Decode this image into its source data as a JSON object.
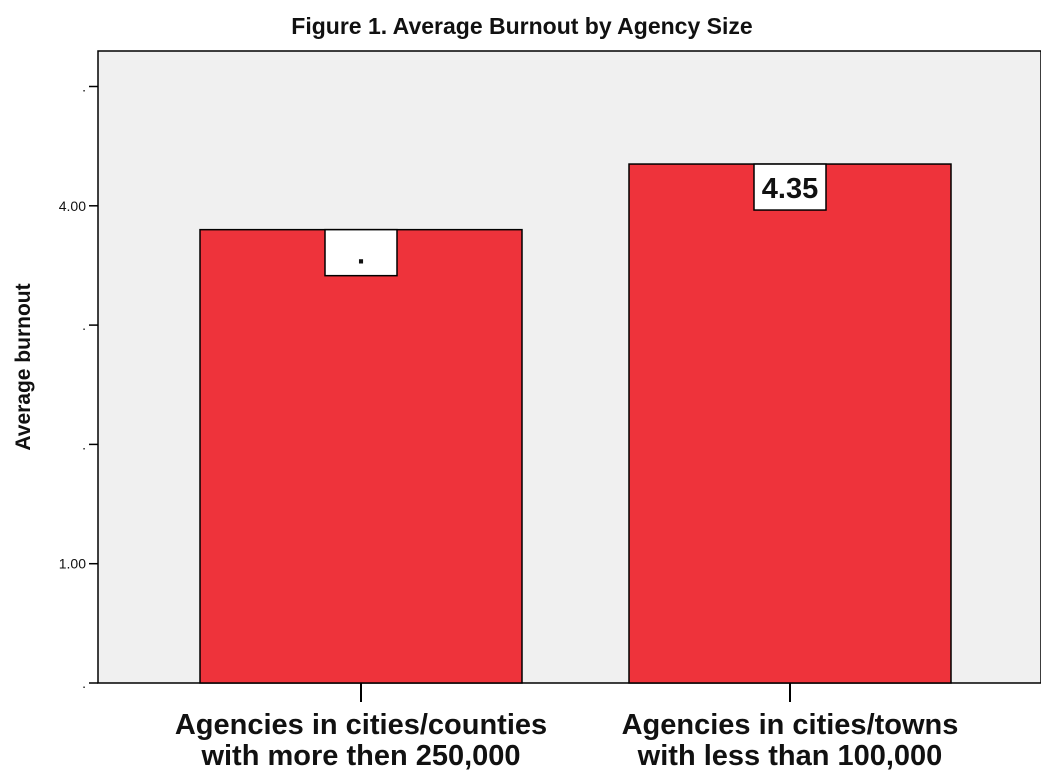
{
  "chart_data": {
    "type": "bar",
    "title": "Figure 1.  Average Burnout by Agency Size",
    "xlabel": "",
    "ylabel": "Average burnout",
    "categories": [
      [
        "Agencies in cities/counties",
        "with more then 250,000"
      ],
      [
        "Agencies in cities/towns",
        "with less than 100,000"
      ]
    ],
    "values": [
      3.8,
      4.35
    ],
    "data_labels": [
      ".",
      "4.35"
    ],
    "ylim": [
      0,
      5
    ],
    "y_ticks": [
      {
        "value": 0,
        "label": "."
      },
      {
        "value": 1,
        "label": "1.00"
      },
      {
        "value": 2,
        "label": "."
      },
      {
        "value": 3,
        "label": "."
      },
      {
        "value": 4,
        "label": "4.00"
      },
      {
        "value": 5,
        "label": "."
      }
    ],
    "grid": false,
    "legend": "none",
    "colors": {
      "bar": "#EE333B",
      "plot_background": "#F0F0F0",
      "axis": "#000000",
      "label_box": "#FFFFFF"
    }
  }
}
